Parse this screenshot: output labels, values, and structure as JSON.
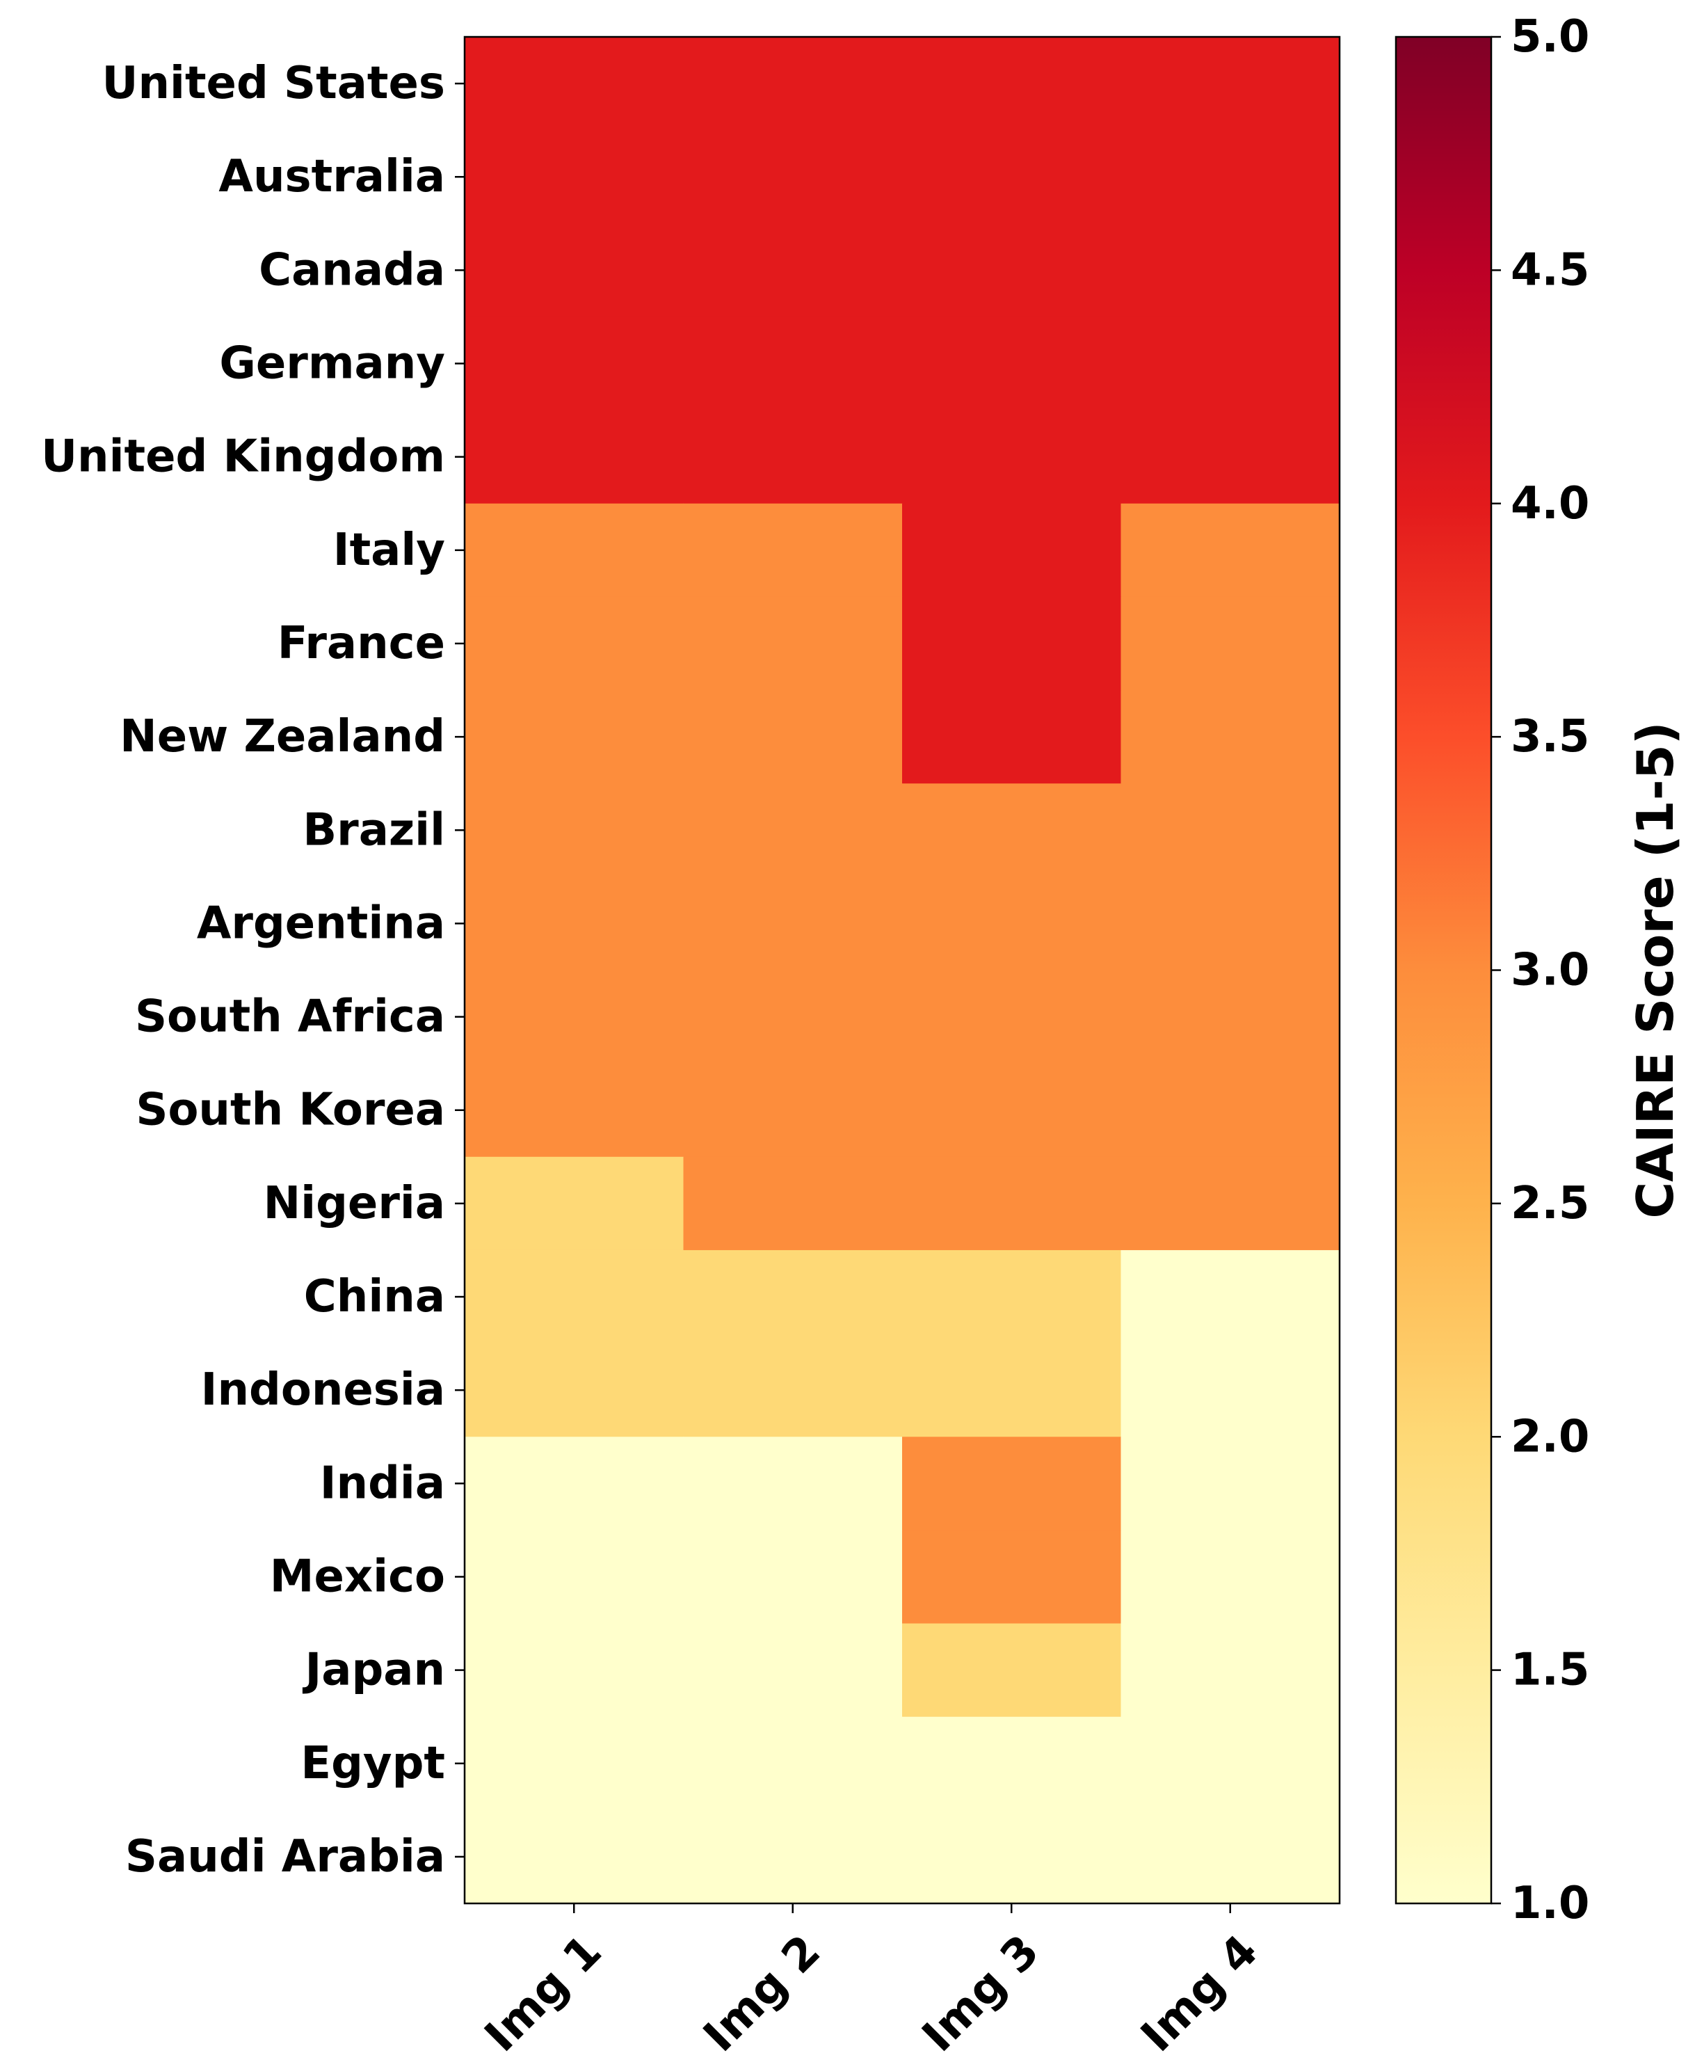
{
  "chart_data": {
    "type": "heatmap",
    "title": "",
    "xlabel": "",
    "ylabel": "",
    "x_categories": [
      "Img 1",
      "Img 2",
      "Img 3",
      "Img 4"
    ],
    "y_categories": [
      "United States",
      "Australia",
      "Canada",
      "Germany",
      "United Kingdom",
      "Italy",
      "France",
      "New Zealand",
      "Brazil",
      "Argentina",
      "South Africa",
      "South Korea",
      "Nigeria",
      "China",
      "Indonesia",
      "India",
      "Mexico",
      "Japan",
      "Egypt",
      "Saudi Arabia"
    ],
    "values": [
      [
        4,
        4,
        4,
        4
      ],
      [
        4,
        4,
        4,
        4
      ],
      [
        4,
        4,
        4,
        4
      ],
      [
        4,
        4,
        4,
        4
      ],
      [
        4,
        4,
        4,
        4
      ],
      [
        3,
        3,
        4,
        3
      ],
      [
        3,
        3,
        4,
        3
      ],
      [
        3,
        3,
        4,
        3
      ],
      [
        3,
        3,
        3,
        3
      ],
      [
        3,
        3,
        3,
        3
      ],
      [
        3,
        3,
        3,
        3
      ],
      [
        3,
        3,
        3,
        3
      ],
      [
        2,
        3,
        3,
        3
      ],
      [
        2,
        2,
        2,
        1
      ],
      [
        2,
        2,
        2,
        1
      ],
      [
        1,
        1,
        3,
        1
      ],
      [
        1,
        1,
        3,
        1
      ],
      [
        1,
        1,
        2,
        1
      ],
      [
        1,
        1,
        1,
        1
      ],
      [
        1,
        1,
        1,
        1
      ]
    ],
    "colormap": "YlOrRd",
    "color_range": [
      1.0,
      5.0
    ],
    "colorbar": {
      "label": "CAIRE Score (1-5)",
      "ticks": [
        "1.0",
        "1.5",
        "2.0",
        "2.5",
        "3.0",
        "3.5",
        "4.0",
        "4.5",
        "5.0"
      ],
      "tick_values": [
        1.0,
        1.5,
        2.0,
        2.5,
        3.0,
        3.5,
        4.0,
        4.5,
        5.0
      ]
    },
    "colors": {
      "cmap_stops": [
        "#ffffcc",
        "#ffeda0",
        "#fed976",
        "#feb24c",
        "#fd8d3c",
        "#fc4e2a",
        "#e31a1c",
        "#bd0026",
        "#800026"
      ]
    }
  }
}
